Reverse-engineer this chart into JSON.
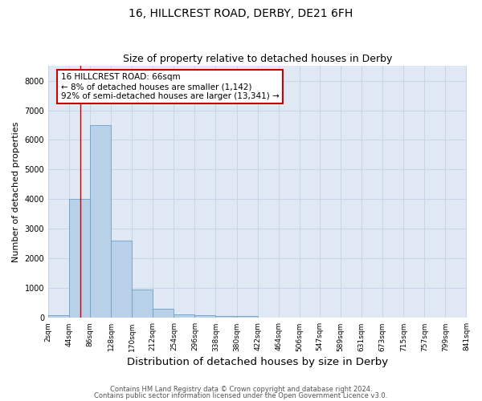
{
  "title1": "16, HILLCREST ROAD, DERBY, DE21 6FH",
  "title2": "Size of property relative to detached houses in Derby",
  "xlabel": "Distribution of detached houses by size in Derby",
  "ylabel": "Number of detached properties",
  "bin_edges": [
    2,
    44,
    86,
    128,
    170,
    212,
    254,
    296,
    338,
    380,
    422,
    464,
    506,
    547,
    589,
    631,
    673,
    715,
    757,
    799,
    841
  ],
  "bar_heights": [
    100,
    4000,
    6500,
    2600,
    950,
    300,
    130,
    80,
    50,
    60,
    0,
    0,
    0,
    0,
    0,
    0,
    0,
    0,
    0,
    0
  ],
  "bar_color": "#b8d0e8",
  "bar_edge_color": "#6ca0c8",
  "property_size": 66,
  "annotation_line1": "16 HILLCREST ROAD: 66sqm",
  "annotation_line2": "← 8% of detached houses are smaller (1,142)",
  "annotation_line3": "92% of semi-detached houses are larger (13,341) →",
  "annotation_box_color": "#ffffff",
  "annotation_border_color": "#cc0000",
  "vline_color": "#cc0000",
  "ylim": [
    0,
    8500
  ],
  "yticks": [
    0,
    1000,
    2000,
    3000,
    4000,
    5000,
    6000,
    7000,
    8000
  ],
  "grid_color": "#c8d4e8",
  "background_color": "#e0e8f4",
  "footer1": "Contains HM Land Registry data © Crown copyright and database right 2024.",
  "footer2": "Contains public sector information licensed under the Open Government Licence v3.0.",
  "title1_fontsize": 10,
  "title2_fontsize": 9,
  "xlabel_fontsize": 9.5,
  "ylabel_fontsize": 8,
  "tick_fontsize": 6.5,
  "annotation_fontsize": 7.5,
  "footer_fontsize": 6
}
